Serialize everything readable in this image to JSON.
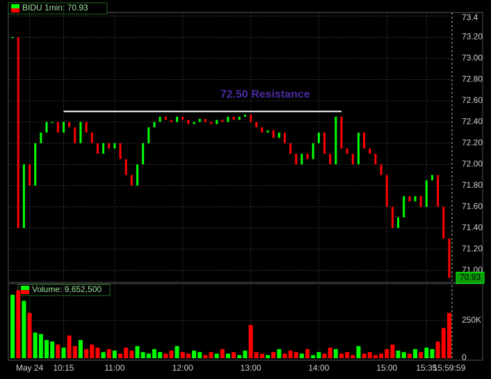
{
  "chart_data": [
    {
      "type": "ohlc",
      "series": [
        {
          "name": "BIDU 1min: 70.93",
          "up_color": "#00ff00",
          "down_color": "#ff0000",
          "values": [
            73.2,
            71.4,
            72.0,
            71.8,
            72.2,
            72.3,
            72.4,
            72.4,
            72.3,
            72.4,
            72.35,
            72.2,
            72.4,
            72.3,
            72.2,
            72.1,
            72.2,
            72.15,
            72.2,
            72.05,
            71.9,
            71.8,
            72.0,
            72.2,
            72.35,
            72.4,
            72.45,
            72.42,
            72.4,
            72.45,
            72.42,
            72.38,
            72.4,
            72.43,
            72.4,
            72.38,
            72.42,
            72.4,
            72.45,
            72.42,
            72.45,
            72.47,
            72.4,
            72.35,
            72.3,
            72.32,
            72.25,
            72.3,
            72.2,
            72.1,
            72.0,
            72.1,
            72.05,
            72.2,
            72.3,
            72.1,
            72.0,
            72.45,
            72.15,
            72.1,
            72.0,
            72.3,
            72.15,
            72.1,
            72.0,
            71.9,
            71.6,
            71.4,
            71.5,
            71.7,
            71.65,
            71.7,
            71.6,
            71.85,
            71.9,
            71.6,
            71.3,
            70.93
          ]
        }
      ],
      "last_value": 70.93,
      "ylim": [
        70.9,
        73.42
      ],
      "yticks": [
        {
          "value": 71.0,
          "label": "71.00"
        },
        {
          "value": 71.2,
          "label": "71.20"
        },
        {
          "value": 71.4,
          "label": "71.40"
        },
        {
          "value": 71.6,
          "label": "71.60"
        },
        {
          "value": 71.8,
          "label": "71.80"
        },
        {
          "value": 72.0,
          "label": "72.00"
        },
        {
          "value": 72.2,
          "label": "72.20"
        },
        {
          "value": 72.4,
          "label": "72.40"
        },
        {
          "value": 72.6,
          "label": "72.60"
        },
        {
          "value": 72.8,
          "label": "72.80"
        },
        {
          "value": 73.0,
          "label": "73.00"
        },
        {
          "value": 73.2,
          "label": "73.20"
        },
        73.4
      ],
      "resistance": {
        "value": 72.5,
        "label": "72.50 Resistance",
        "from": 9,
        "to": 58
      },
      "grid": true
    },
    {
      "type": "bar",
      "series": [
        {
          "name": "Volume: 9,652,500",
          "values": [
            420000,
            450000,
            380000,
            300000,
            170000,
            160000,
            120000,
            110000,
            90000,
            70000,
            150000,
            80000,
            120000,
            60000,
            90000,
            70000,
            40000,
            60000,
            50000,
            30000,
            70000,
            50000,
            80000,
            40000,
            30000,
            60000,
            40000,
            30000,
            50000,
            80000,
            40000,
            30000,
            50000,
            40000,
            20000,
            40000,
            30000,
            60000,
            30000,
            40000,
            20000,
            50000,
            220000,
            40000,
            30000,
            20000,
            40000,
            60000,
            30000,
            50000,
            40000,
            30000,
            60000,
            20000,
            40000,
            30000,
            70000,
            60000,
            30000,
            40000,
            20000,
            80000,
            30000,
            40000,
            20000,
            30000,
            60000,
            90000,
            50000,
            40000,
            30000,
            60000,
            40000,
            70000,
            60000,
            110000,
            200000,
            300000
          ]
        }
      ],
      "categories": [
        null,
        null,
        null,
        "May 24",
        null,
        null,
        null,
        null,
        null,
        "10:15",
        null,
        null,
        null,
        null,
        null,
        null,
        null,
        null,
        "11:00",
        null,
        null,
        null,
        null,
        null,
        null,
        null,
        null,
        null,
        null,
        null,
        "12:00",
        null,
        null,
        null,
        null,
        null,
        null,
        null,
        null,
        null,
        null,
        null,
        "13:00",
        null,
        null,
        null,
        null,
        null,
        null,
        null,
        null,
        null,
        null,
        null,
        "14:00",
        null,
        null,
        null,
        null,
        null,
        null,
        null,
        null,
        null,
        null,
        null,
        "15:00",
        null,
        null,
        null,
        null,
        null,
        null,
        "15:35",
        null,
        null,
        null,
        "15:59:59"
      ],
      "ylim": [
        0,
        475000
      ],
      "yticks": [
        0,
        {
          "value": 250000,
          "label": "250K"
        }
      ],
      "grid": true
    }
  ]
}
